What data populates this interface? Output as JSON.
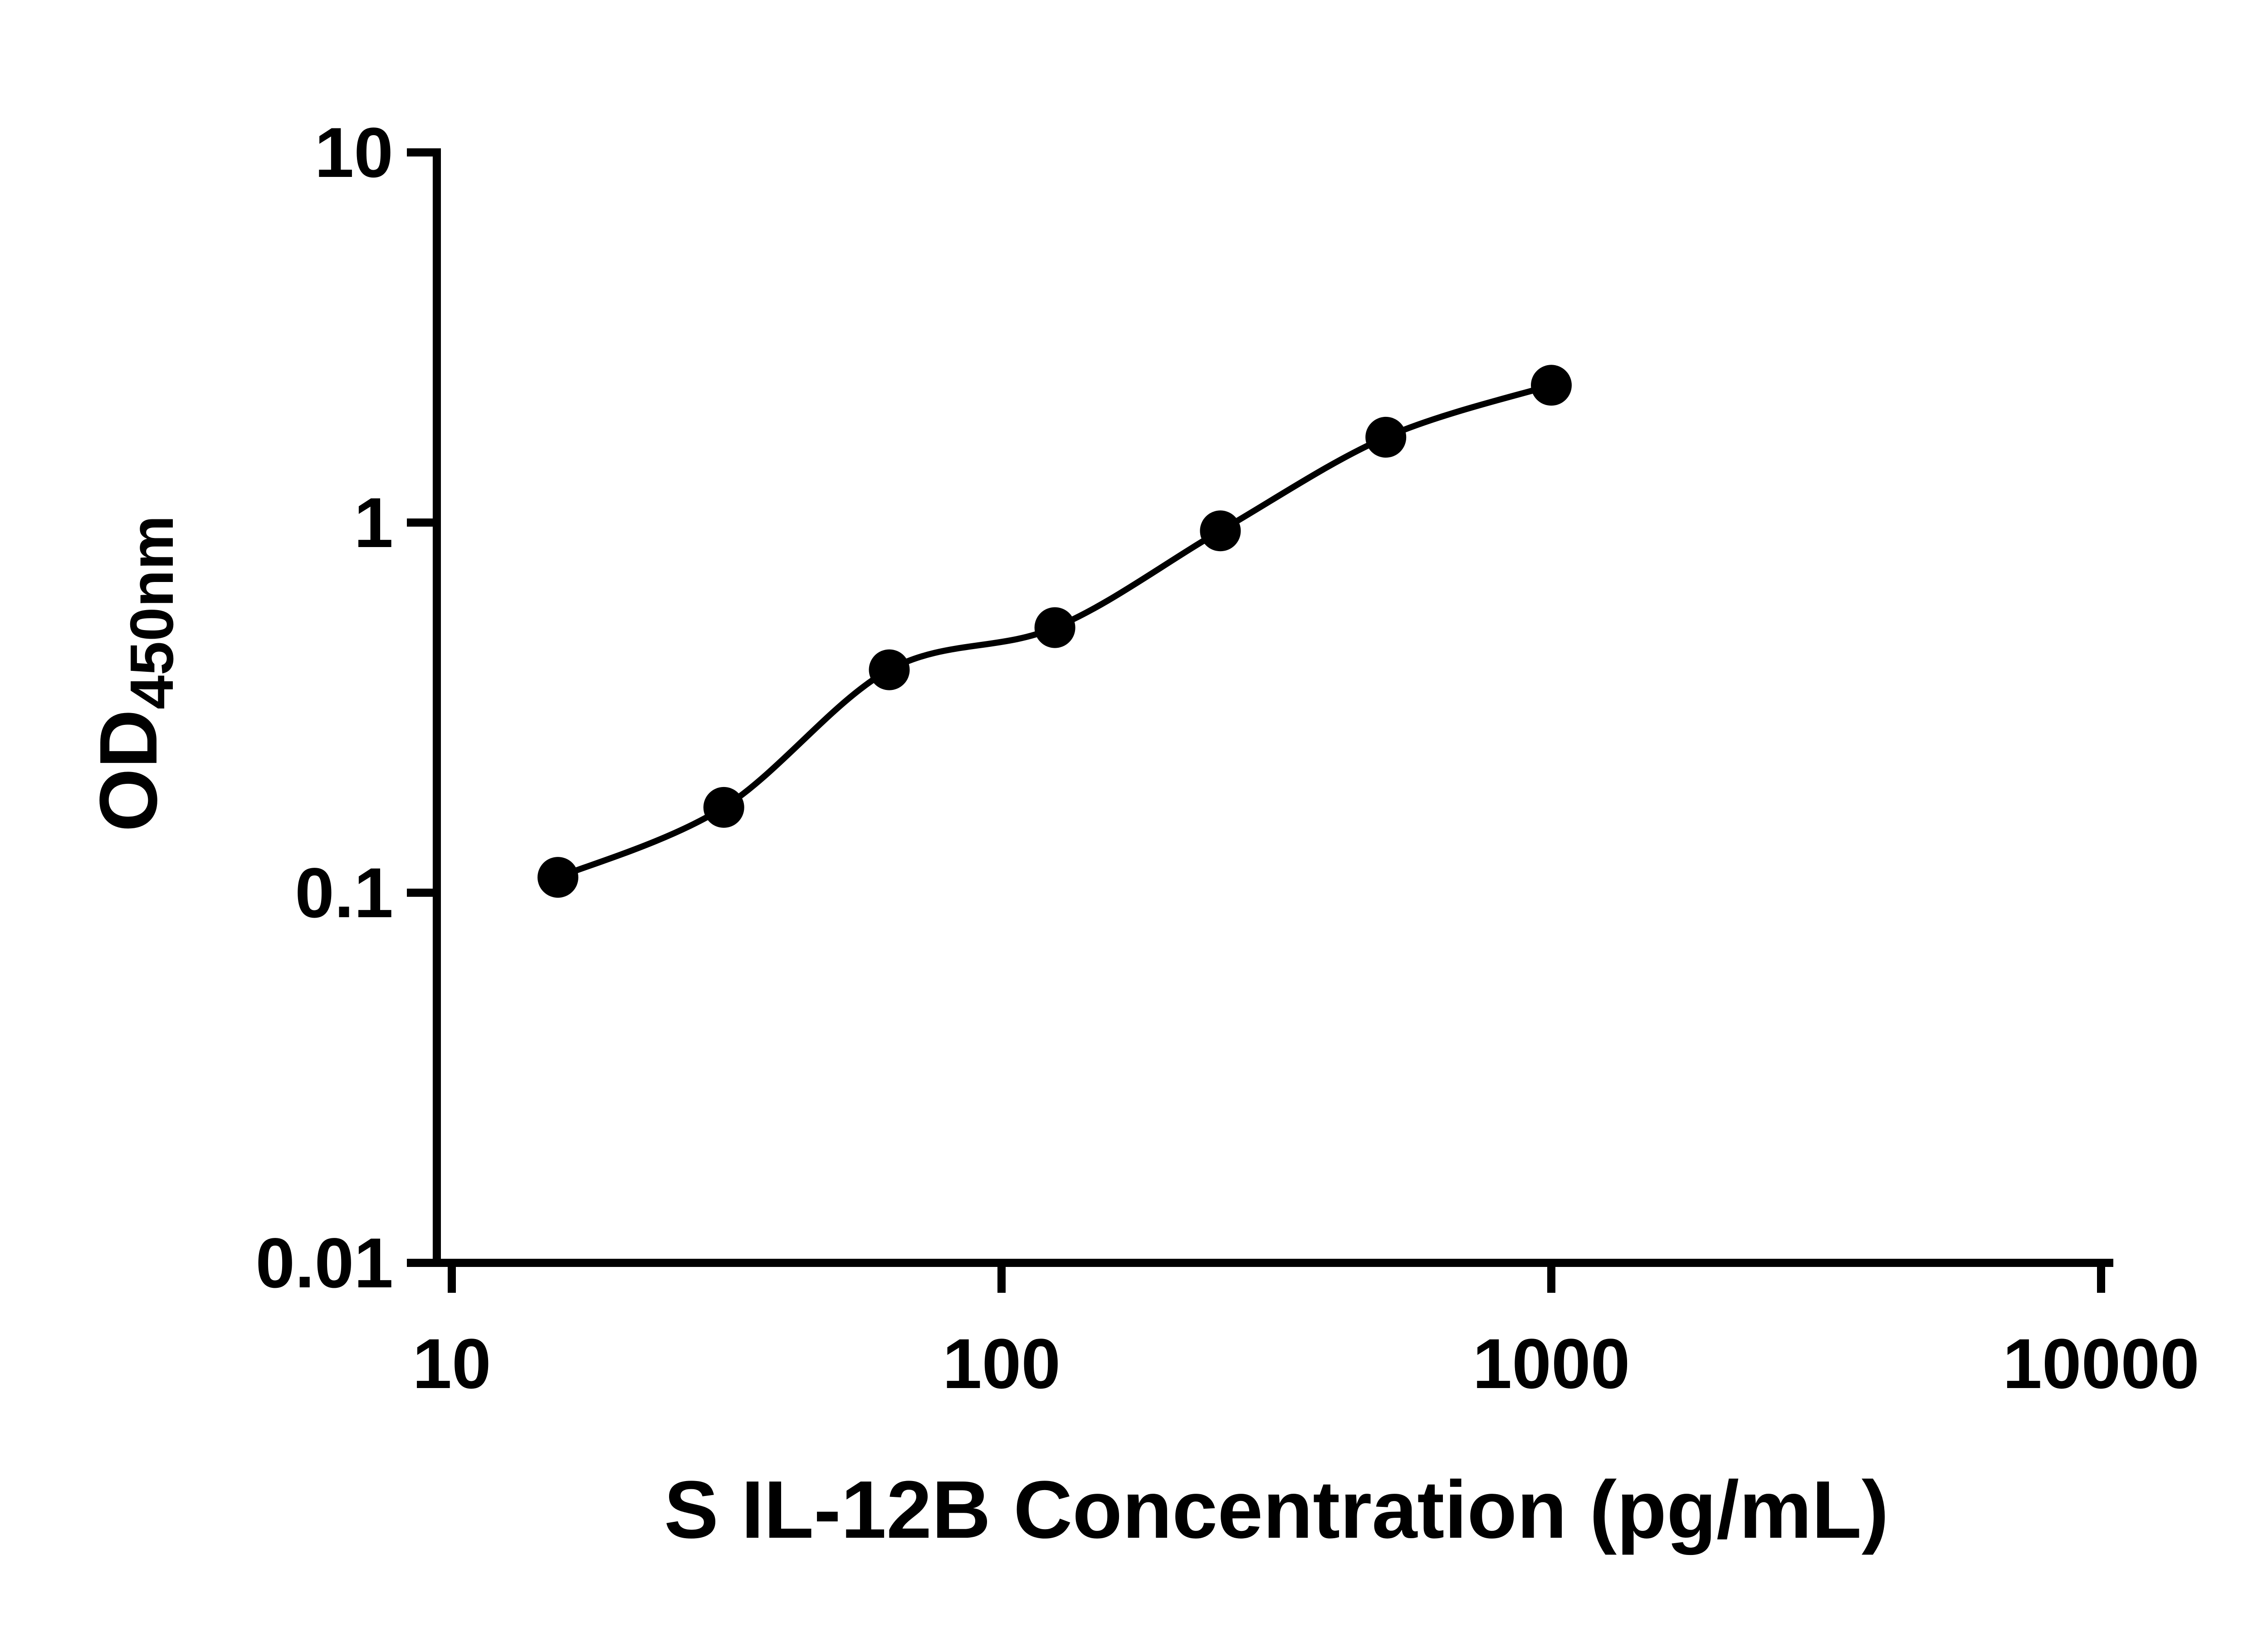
{
  "chart_data": {
    "type": "scatter",
    "title": "",
    "xlabel": "S IL-12B Concentration (pg/mL)",
    "ylabel_main": "OD",
    "ylabel_sub": "450nm",
    "x_scale": "log",
    "y_scale": "log",
    "xlim": [
      10,
      10000
    ],
    "ylim": [
      0.01,
      10
    ],
    "x_ticks": [
      10,
      100,
      1000,
      10000
    ],
    "x_tick_labels": [
      "10",
      "100",
      "1000",
      "10000"
    ],
    "y_ticks": [
      0.01,
      0.1,
      1,
      10
    ],
    "y_tick_labels": [
      "0.01",
      "0.1",
      "1",
      "10"
    ],
    "grid": "off",
    "legend": "none",
    "curve_style": "smooth-fit-line",
    "marker_shape": "filled-circle",
    "marker_color": "#000000",
    "line_color": "#000000",
    "axis_color": "#000000",
    "background_color": "#ffffff",
    "points": [
      {
        "x": 15.6,
        "y": 0.11
      },
      {
        "x": 31.25,
        "y": 0.17
      },
      {
        "x": 62.5,
        "y": 0.4
      },
      {
        "x": 125,
        "y": 0.52
      },
      {
        "x": 250,
        "y": 0.95
      },
      {
        "x": 500,
        "y": 1.7
      },
      {
        "x": 1000,
        "y": 2.35
      }
    ]
  }
}
